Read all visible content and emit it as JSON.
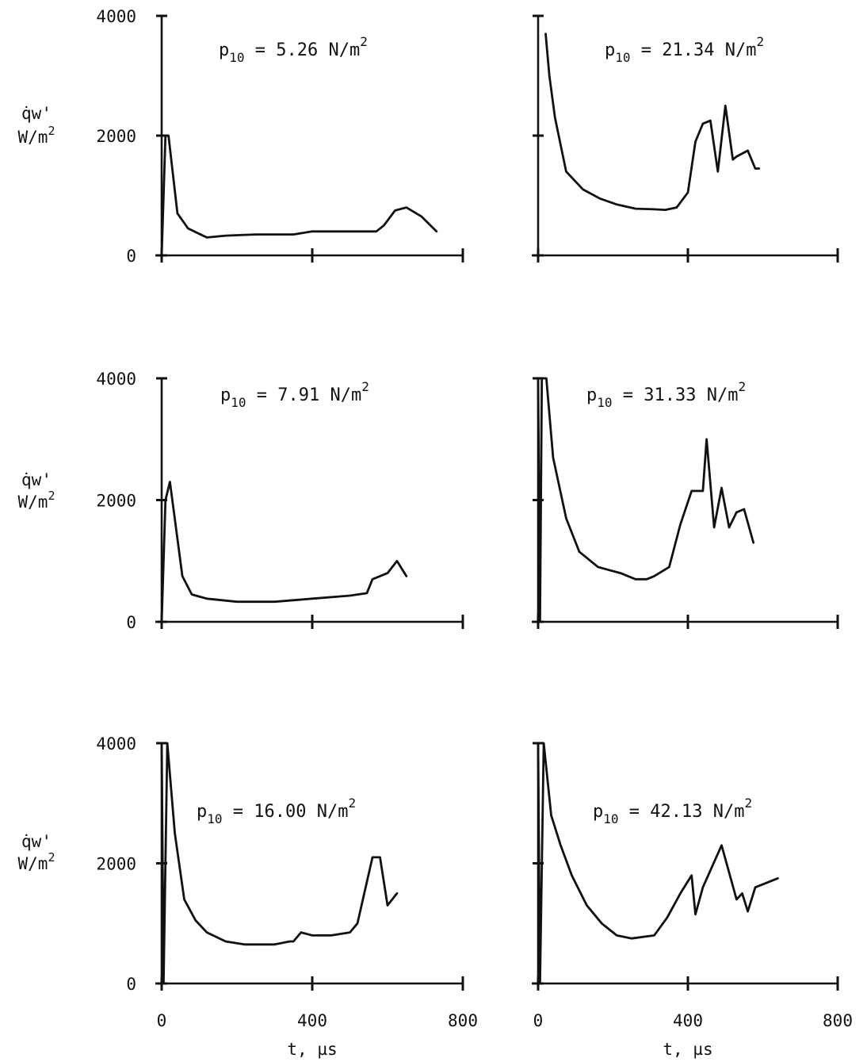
{
  "chart_data": [
    {
      "type": "line",
      "title": "p10 = 5.26 N/m2",
      "title_parts": {
        "symbol": "p",
        "sub": "10",
        "value": " = 5.26 N/m",
        "sup": "2"
      },
      "xlim": [
        0,
        800
      ],
      "ylim": [
        0,
        4000
      ],
      "x_ticks": [
        0,
        400,
        800
      ],
      "y_ticks": [
        0,
        2000,
        4000
      ],
      "x_tick_labels": [],
      "y_tick_labels": [
        "0",
        "2000",
        "4000"
      ],
      "ylabel_line1": "q̇w'",
      "ylabel_line2": "W/m2",
      "xlabel": "",
      "x": [
        0,
        10,
        18,
        42,
        70,
        120,
        170,
        250,
        350,
        400,
        500,
        570,
        590,
        620,
        650,
        690,
        730
      ],
      "y": [
        0,
        2000,
        2000,
        700,
        450,
        300,
        330,
        350,
        350,
        400,
        400,
        400,
        500,
        750,
        800,
        650,
        400
      ]
    },
    {
      "type": "line",
      "title": "p10 = 21.34 N/m2",
      "title_parts": {
        "symbol": "p",
        "sub": "10",
        "value": " = 21.34 N/m",
        "sup": "2"
      },
      "xlim": [
        0,
        800
      ],
      "ylim": [
        0,
        4000
      ],
      "x_ticks": [
        0,
        400,
        800
      ],
      "y_ticks": [
        0,
        2000,
        4000
      ],
      "x_tick_labels": [],
      "y_tick_labels": [],
      "ylabel_line1": "",
      "ylabel_line2": "",
      "xlabel": "",
      "x": [
        20,
        30,
        45,
        75,
        120,
        165,
        210,
        260,
        310,
        340,
        370,
        400,
        420,
        440,
        460,
        480,
        500,
        520,
        530,
        560,
        580,
        590
      ],
      "y": [
        3700,
        3000,
        2300,
        1400,
        1100,
        950,
        850,
        780,
        770,
        760,
        800,
        1050,
        1900,
        2200,
        2250,
        1400,
        2500,
        1600,
        1650,
        1750,
        1450,
        1450
      ]
    },
    {
      "type": "line",
      "title": "p10 = 7.91 N/m2",
      "title_parts": {
        "symbol": "p",
        "sub": "10",
        "value": " = 7.91 N/m",
        "sup": "2"
      },
      "xlim": [
        0,
        800
      ],
      "ylim": [
        0,
        4000
      ],
      "x_ticks": [
        0,
        400,
        800
      ],
      "y_ticks": [
        0,
        2000,
        4000
      ],
      "x_tick_labels": [],
      "y_tick_labels": [
        "0",
        "2000",
        "4000"
      ],
      "ylabel_line1": "q̇w'",
      "ylabel_line2": "W/m2",
      "xlabel": "",
      "x": [
        0,
        10,
        22,
        55,
        80,
        120,
        200,
        300,
        400,
        500,
        545,
        560,
        600,
        625,
        650
      ],
      "y": [
        0,
        2000,
        2300,
        750,
        450,
        380,
        330,
        330,
        380,
        430,
        470,
        700,
        800,
        1000,
        750
      ]
    },
    {
      "type": "line",
      "title": "p10 = 31.33 N/m2",
      "title_parts": {
        "symbol": "p",
        "sub": "10",
        "value": " = 31.33 N/m",
        "sup": "2"
      },
      "xlim": [
        0,
        800
      ],
      "ylim": [
        0,
        4000
      ],
      "x_ticks": [
        0,
        400,
        800
      ],
      "y_ticks": [
        0,
        2000,
        4000
      ],
      "x_tick_labels": [],
      "y_tick_labels": [],
      "ylabel_line1": "",
      "ylabel_line2": "",
      "xlabel": "",
      "x": [
        0,
        5,
        10,
        22,
        40,
        75,
        110,
        160,
        190,
        220,
        260,
        290,
        310,
        350,
        380,
        410,
        440,
        450,
        470,
        490,
        510,
        530,
        550,
        575
      ],
      "y": [
        4000,
        0,
        4000,
        4000,
        2700,
        1700,
        1150,
        900,
        850,
        800,
        700,
        700,
        750,
        900,
        1600,
        2150,
        2150,
        3000,
        1550,
        2200,
        1550,
        1800,
        1850,
        1300
      ]
    },
    {
      "type": "line",
      "title": "p10 = 16.00 N/m2",
      "title_parts": {
        "symbol": "p",
        "sub": "10",
        "value": " = 16.00 N/m",
        "sup": "2"
      },
      "xlim": [
        0,
        800
      ],
      "ylim": [
        0,
        4000
      ],
      "x_ticks": [
        0,
        400,
        800
      ],
      "y_ticks": [
        0,
        2000,
        4000
      ],
      "x_tick_labels": [
        "0",
        "400",
        "800"
      ],
      "y_tick_labels": [
        "0",
        "2000",
        "4000"
      ],
      "ylabel_line1": "q̇w'",
      "ylabel_line2": "W/m2",
      "xlabel": "t, µs",
      "x": [
        0,
        5,
        15,
        35,
        60,
        90,
        120,
        170,
        220,
        300,
        340,
        350,
        370,
        400,
        450,
        500,
        520,
        560,
        580,
        600,
        625
      ],
      "y": [
        4000,
        0,
        4000,
        2500,
        1400,
        1050,
        850,
        700,
        650,
        650,
        700,
        700,
        850,
        800,
        800,
        850,
        1000,
        2100,
        2100,
        1300,
        1500
      ]
    },
    {
      "type": "line",
      "title": "p10 = 42.13 N/m2",
      "title_parts": {
        "symbol": "p",
        "sub": "10",
        "value": " = 42.13 N/m",
        "sup": "2"
      },
      "xlim": [
        0,
        800
      ],
      "ylim": [
        0,
        4000
      ],
      "x_ticks": [
        0,
        400,
        800
      ],
      "y_ticks": [
        0,
        2000,
        4000
      ],
      "x_tick_labels": [
        "0",
        "400",
        "800"
      ],
      "y_tick_labels": [],
      "ylabel_line1": "",
      "ylabel_line2": "",
      "xlabel": "t, µs",
      "x": [
        0,
        5,
        15,
        35,
        60,
        90,
        130,
        170,
        210,
        250,
        310,
        345,
        380,
        410,
        420,
        440,
        490,
        530,
        545,
        560,
        580,
        640
      ],
      "y": [
        4000,
        0,
        4000,
        2800,
        2300,
        1800,
        1300,
        1000,
        800,
        750,
        800,
        1100,
        1500,
        1800,
        1150,
        1600,
        2300,
        1400,
        1500,
        1200,
        1600,
        1750
      ]
    }
  ]
}
